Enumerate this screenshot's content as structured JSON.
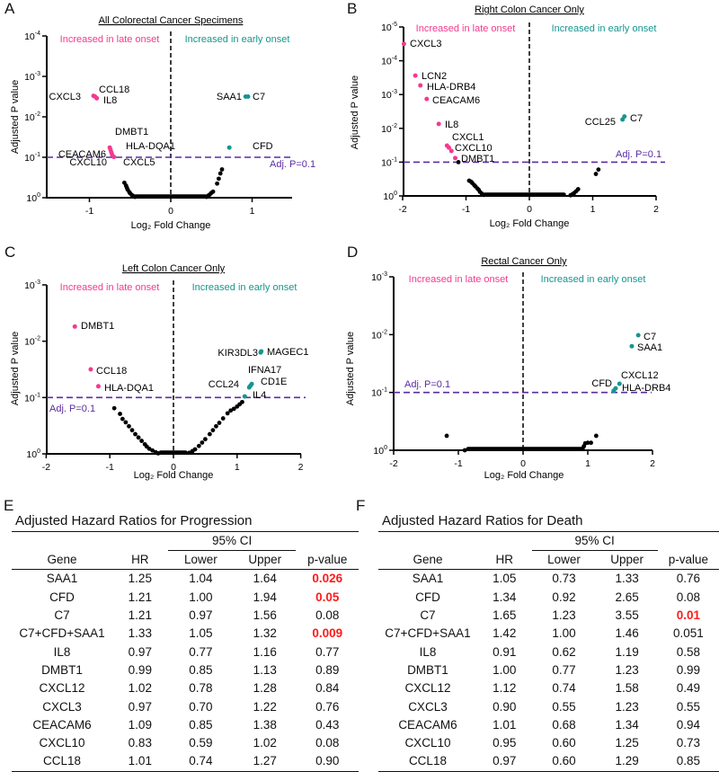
{
  "panel_letters": [
    "A",
    "B",
    "C",
    "D",
    "E",
    "F"
  ],
  "colors": {
    "late": "#f4398f",
    "early": "#17958f",
    "threshold": "#5a2ca0",
    "ns": "#000000",
    "sig_p": "#ff1a1a"
  },
  "chart_data": [
    {
      "type": "scatter",
      "id": "A",
      "title": "All Colorectal Cancer Specimens",
      "xlabel": "Log₂ Fold Change",
      "ylabel": "Adjusted P value",
      "xlim": [
        -1.5,
        1.5
      ],
      "x_ticks": [
        -1,
        0,
        1
      ],
      "y_tick_exponents": [
        0,
        -1,
        -2,
        -3,
        -4
      ],
      "y_scale": "-log10(adjusted p)",
      "ylim": [
        0,
        4
      ],
      "quadrant_labels": {
        "late": "Increased in late onset",
        "early": "Increased in early onset"
      },
      "threshold": {
        "p": 0.1,
        "label": "Adj. P=0.1"
      },
      "significant": [
        {
          "gene": "CXCL3",
          "x": -0.95,
          "y": 2.52,
          "group": "late"
        },
        {
          "gene": "CCL18",
          "x": -0.93,
          "y": 2.5,
          "group": "late"
        },
        {
          "gene": "IL8",
          "x": -0.91,
          "y": 2.46,
          "group": "late"
        },
        {
          "gene": "CEACAM6",
          "x": -0.75,
          "y": 1.24,
          "group": "late"
        },
        {
          "gene": "DMBT1",
          "x": -0.74,
          "y": 1.18,
          "group": "late"
        },
        {
          "gene": "HLA-DQA1",
          "x": -0.73,
          "y": 1.12,
          "group": "late"
        },
        {
          "gene": "CXCL10",
          "x": -0.72,
          "y": 1.06,
          "group": "late"
        },
        {
          "gene": "CXCL5",
          "x": -0.7,
          "y": 1.01,
          "group": "late"
        },
        {
          "gene": "SAA1",
          "x": 0.92,
          "y": 2.5,
          "group": "early"
        },
        {
          "gene": "C7",
          "x": 0.95,
          "y": 2.5,
          "group": "early"
        },
        {
          "gene": "CFD",
          "x": 0.72,
          "y": 1.24,
          "group": "early"
        }
      ],
      "nonsignificant": [
        [
          -0.57,
          0.37
        ],
        [
          -0.55,
          0.3
        ],
        [
          -0.54,
          0.25
        ],
        [
          -0.53,
          0.2
        ],
        [
          -0.51,
          0.14
        ],
        [
          -0.5,
          0.11
        ],
        [
          -0.48,
          0.07
        ],
        [
          -0.46,
          0.04
        ],
        [
          -0.44,
          0.02
        ],
        [
          0.44,
          0.02
        ],
        [
          0.46,
          0.05
        ],
        [
          0.48,
          0.08
        ],
        [
          0.5,
          0.12
        ],
        [
          0.52,
          0.15
        ],
        [
          0.57,
          0.35
        ],
        [
          0.59,
          0.47
        ],
        [
          0.61,
          0.6
        ],
        [
          0.63,
          0.7
        ]
      ],
      "baseline_x_range": [
        -0.43,
        0.43
      ]
    },
    {
      "type": "scatter",
      "id": "B",
      "title": "Right Colon Cancer Only",
      "xlabel": "Log₂ Fold Change",
      "ylabel": "Adjusted P value",
      "xlim": [
        -2,
        2
      ],
      "x_ticks": [
        -2,
        -1,
        0,
        1,
        2
      ],
      "y_tick_exponents": [
        0,
        -1,
        -2,
        -3,
        -4,
        -5
      ],
      "y_scale": "-log10(adjusted p)",
      "ylim": [
        0,
        5
      ],
      "quadrant_labels": {
        "late": "Increased in late onset",
        "early": "Increased in early onset"
      },
      "threshold": {
        "p": 0.1,
        "label": "Adj. P=0.1"
      },
      "significant": [
        {
          "gene": "CXCL3",
          "x": -1.98,
          "y": 4.5,
          "group": "late"
        },
        {
          "gene": "LCN2",
          "x": -1.8,
          "y": 3.56,
          "group": "late"
        },
        {
          "gene": "HLA-DRB4",
          "x": -1.72,
          "y": 3.27,
          "group": "late"
        },
        {
          "gene": "CEACAM6",
          "x": -1.62,
          "y": 2.87,
          "group": "late"
        },
        {
          "gene": "IL8",
          "x": -1.43,
          "y": 2.13,
          "group": "late"
        },
        {
          "gene": "CXCL1",
          "x": -1.3,
          "y": 1.49,
          "group": "late"
        },
        {
          "gene": "CXCL10",
          "x": -1.27,
          "y": 1.43,
          "group": "late"
        },
        {
          "gene": "",
          "x": -1.23,
          "y": 1.33,
          "group": "late"
        },
        {
          "gene": "DMBT1",
          "x": -1.17,
          "y": 1.12,
          "group": "late"
        },
        {
          "gene": "CCL25",
          "x": 1.47,
          "y": 2.26,
          "group": "early"
        },
        {
          "gene": "C7",
          "x": 1.5,
          "y": 2.35,
          "group": "early"
        }
      ],
      "nonsignificant": [
        [
          -1.12,
          1.0
        ],
        [
          -0.95,
          0.45
        ],
        [
          -0.92,
          0.42
        ],
        [
          -0.9,
          0.38
        ],
        [
          -0.87,
          0.32
        ],
        [
          -0.85,
          0.28
        ],
        [
          -0.82,
          0.22
        ],
        [
          -0.8,
          0.18
        ],
        [
          -0.78,
          0.12
        ],
        [
          -0.75,
          0.07
        ],
        [
          -0.72,
          0.03
        ],
        [
          0.65,
          0.02
        ],
        [
          0.68,
          0.05
        ],
        [
          0.71,
          0.09
        ],
        [
          0.74,
          0.14
        ],
        [
          0.77,
          0.2
        ],
        [
          1.05,
          0.65
        ],
        [
          1.09,
          0.78
        ]
      ],
      "baseline_x_range": [
        -0.7,
        0.55
      ]
    },
    {
      "type": "scatter",
      "id": "C",
      "title": "Left Colon Cancer Only",
      "xlabel": "Log₂ Fold Change",
      "ylabel": "Adjusted P value",
      "xlim": [
        -2,
        2
      ],
      "x_ticks": [
        -2,
        -1,
        0,
        1,
        2
      ],
      "y_tick_exponents": [
        0,
        -1,
        -2,
        -3
      ],
      "y_scale": "-log10(adjusted p)",
      "ylim": [
        0,
        3
      ],
      "quadrant_labels": {
        "late": "Increased in late onset",
        "early": "Increased in early onset"
      },
      "threshold": {
        "p": 0.1,
        "label": "Adj. P=0.1"
      },
      "significant": [
        {
          "gene": "DMBT1",
          "x": -1.55,
          "y": 2.26,
          "group": "late"
        },
        {
          "gene": "CCL18",
          "x": -1.3,
          "y": 1.5,
          "group": "late"
        },
        {
          "gene": "HLA-DQA1",
          "x": -1.18,
          "y": 1.2,
          "group": "late"
        },
        {
          "gene": "KIR3DL3",
          "x": 1.37,
          "y": 1.8,
          "group": "early"
        },
        {
          "gene": "MAGEC1",
          "x": 1.38,
          "y": 1.82,
          "group": "early"
        },
        {
          "gene": "IFNA17",
          "x": 1.23,
          "y": 1.24,
          "group": "early"
        },
        {
          "gene": "CD1E",
          "x": 1.21,
          "y": 1.21,
          "group": "early"
        },
        {
          "gene": "CCL24",
          "x": 1.19,
          "y": 1.18,
          "group": "early"
        },
        {
          "gene": "IL4",
          "x": 1.12,
          "y": 1.02,
          "group": "early"
        }
      ],
      "nonsignificant": [
        [
          -0.93,
          0.81
        ],
        [
          -0.84,
          0.71
        ],
        [
          -0.8,
          0.62
        ],
        [
          -0.75,
          0.56
        ],
        [
          -0.7,
          0.49
        ],
        [
          -0.65,
          0.42
        ],
        [
          -0.6,
          0.35
        ],
        [
          -0.55,
          0.29
        ],
        [
          -0.5,
          0.23
        ],
        [
          -0.45,
          0.17
        ],
        [
          -0.42,
          0.13
        ],
        [
          -0.38,
          0.09
        ],
        [
          -0.33,
          0.06
        ],
        [
          -0.28,
          0.03
        ],
        [
          -0.24,
          0.01
        ],
        [
          0.25,
          0.02
        ],
        [
          0.3,
          0.05
        ],
        [
          0.34,
          0.08
        ],
        [
          0.4,
          0.14
        ],
        [
          0.45,
          0.2
        ],
        [
          0.5,
          0.26
        ],
        [
          0.57,
          0.35
        ],
        [
          0.62,
          0.42
        ],
        [
          0.67,
          0.49
        ],
        [
          0.72,
          0.55
        ],
        [
          0.78,
          0.63
        ],
        [
          0.85,
          0.72
        ],
        [
          0.9,
          0.77
        ],
        [
          0.95,
          0.8
        ],
        [
          1.0,
          0.84
        ],
        [
          1.04,
          0.88
        ],
        [
          1.08,
          0.92
        ]
      ],
      "baseline_x_range": [
        -0.2,
        0.2
      ]
    },
    {
      "type": "scatter",
      "id": "D",
      "title": "Rectal Cancer Only",
      "xlabel": "Log₂ Fold Change",
      "ylabel": "Adjusted P value",
      "xlim": [
        -2,
        2
      ],
      "x_ticks": [
        -2,
        -1,
        0,
        1,
        2
      ],
      "y_tick_exponents": [
        0,
        -1,
        -2,
        -3
      ],
      "y_scale": "-log10(adjusted p)",
      "ylim": [
        0,
        3
      ],
      "quadrant_labels": {
        "late": "Increased in late onset",
        "early": "Increased in early onset"
      },
      "threshold": {
        "p": 0.1,
        "label": "Adj. P=0.1"
      },
      "significant": [
        {
          "gene": "C7",
          "x": 1.78,
          "y": 1.99,
          "group": "early"
        },
        {
          "gene": "SAA1",
          "x": 1.68,
          "y": 1.8,
          "group": "early"
        },
        {
          "gene": "CXCL12",
          "x": 1.49,
          "y": 1.15,
          "group": "early"
        },
        {
          "gene": "HLA-DRB4",
          "x": 1.43,
          "y": 1.07,
          "group": "early"
        },
        {
          "gene": "CFD",
          "x": 1.4,
          "y": 1.03,
          "group": "early"
        }
      ],
      "nonsignificant": [
        [
          -1.18,
          0.25
        ],
        [
          -0.9,
          0.0
        ],
        [
          0.92,
          0.03
        ],
        [
          0.94,
          0.07
        ],
        [
          0.96,
          0.12
        ],
        [
          1.0,
          0.13
        ],
        [
          1.05,
          0.13
        ],
        [
          1.13,
          0.25
        ]
      ],
      "baseline_x_range": [
        -0.85,
        0.9
      ]
    }
  ],
  "tables": [
    {
      "type": "table",
      "id": "E",
      "title": "Adjusted Hazard Ratios for Progression",
      "ci_header": "95% CI",
      "columns": [
        "Gene",
        "HR",
        "Lower",
        "Upper",
        "p-value"
      ],
      "rows": [
        {
          "gene": "SAA1",
          "hr": "1.25",
          "lower": "1.04",
          "upper": "1.64",
          "p": "0.026",
          "sig": true
        },
        {
          "gene": "CFD",
          "hr": "1.21",
          "lower": "1.00",
          "upper": "1.94",
          "p": "0.05",
          "sig": true
        },
        {
          "gene": "C7",
          "hr": "1.21",
          "lower": "0.97",
          "upper": "1.56",
          "p": "0.08",
          "sig": false
        },
        {
          "gene": "C7+CFD+SAA1",
          "hr": "1.33",
          "lower": "1.05",
          "upper": "1.32",
          "p": "0.009",
          "sig": true
        },
        {
          "gene": "IL8",
          "hr": "0.97",
          "lower": "0.77",
          "upper": "1.16",
          "p": "0.77",
          "sig": false
        },
        {
          "gene": "DMBT1",
          "hr": "0.99",
          "lower": "0.85",
          "upper": "1.13",
          "p": "0.89",
          "sig": false
        },
        {
          "gene": "CXCL12",
          "hr": "1.02",
          "lower": "0.78",
          "upper": "1.28",
          "p": "0.84",
          "sig": false
        },
        {
          "gene": "CXCL3",
          "hr": "0.97",
          "lower": "0.70",
          "upper": "1.22",
          "p": "0.76",
          "sig": false
        },
        {
          "gene": "CEACAM6",
          "hr": "1.09",
          "lower": "0.85",
          "upper": "1.38",
          "p": "0.43",
          "sig": false
        },
        {
          "gene": "CXCL10",
          "hr": "0.83",
          "lower": "0.59",
          "upper": "1.02",
          "p": "0.08",
          "sig": false
        },
        {
          "gene": "CCL18",
          "hr": "1.01",
          "lower": "0.74",
          "upper": "1.27",
          "p": "0.90",
          "sig": false
        }
      ]
    },
    {
      "type": "table",
      "id": "F",
      "title": "Adjusted Hazard Ratios for Death",
      "ci_header": "95% CI",
      "columns": [
        "Gene",
        "HR",
        "Lower",
        "Upper",
        "p-value"
      ],
      "rows": [
        {
          "gene": "SAA1",
          "hr": "1.05",
          "lower": "0.73",
          "upper": "1.33",
          "p": "0.76",
          "sig": false
        },
        {
          "gene": "CFD",
          "hr": "1.34",
          "lower": "0.92",
          "upper": "2.65",
          "p": "0.08",
          "sig": false
        },
        {
          "gene": "C7",
          "hr": "1.65",
          "lower": "1.23",
          "upper": "3.55",
          "p": "0.01",
          "sig": true
        },
        {
          "gene": "C7+CFD+SAA1",
          "hr": "1.42",
          "lower": "1.00",
          "upper": "1.46",
          "p": "0.051",
          "sig": false
        },
        {
          "gene": "IL8",
          "hr": "0.91",
          "lower": "0.62",
          "upper": "1.19",
          "p": "0.58",
          "sig": false
        },
        {
          "gene": "DMBT1",
          "hr": "1.00",
          "lower": "0.77",
          "upper": "1.23",
          "p": "0.99",
          "sig": false
        },
        {
          "gene": "CXCL12",
          "hr": "1.12",
          "lower": "0.74",
          "upper": "1.58",
          "p": "0.49",
          "sig": false
        },
        {
          "gene": "CXCL3",
          "hr": "0.90",
          "lower": "0.55",
          "upper": "1.23",
          "p": "0.55",
          "sig": false
        },
        {
          "gene": "CEACAM6",
          "hr": "1.01",
          "lower": "0.68",
          "upper": "1.34",
          "p": "0.94",
          "sig": false
        },
        {
          "gene": "CXCL10",
          "hr": "0.95",
          "lower": "0.60",
          "upper": "1.25",
          "p": "0.73",
          "sig": false
        },
        {
          "gene": "CCL18",
          "hr": "0.97",
          "lower": "0.60",
          "upper": "1.29",
          "p": "0.85",
          "sig": false
        }
      ]
    }
  ]
}
